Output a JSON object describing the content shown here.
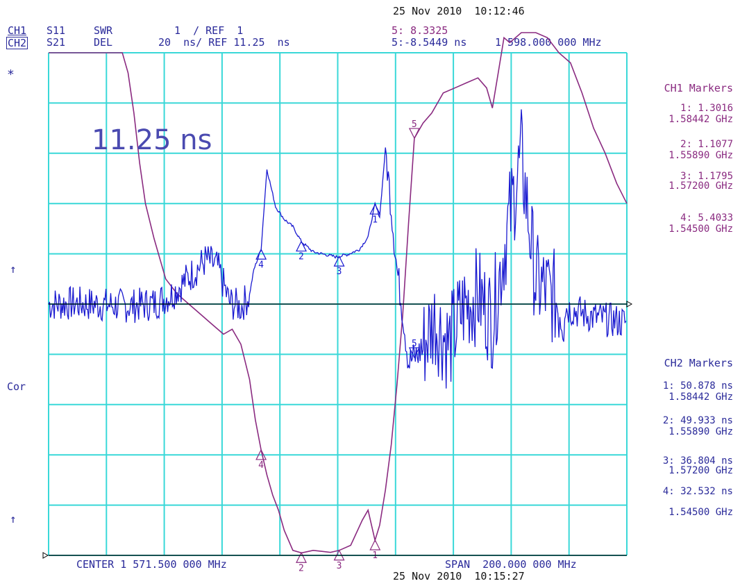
{
  "header": {
    "top_timestamp": "25 Nov 2010  10:12:46",
    "bottom_timestamp": "25 Nov 2010  10:15:27",
    "ch1_label": "CH1",
    "ch2_label": "CH2",
    "ch1_param": "S11",
    "ch2_param": "S21",
    "ch1_format": "SWR",
    "ch2_format": "DEL",
    "ch1_scale": "1  / REF  1",
    "ch2_scale": "20  ns/ REF 11.25  ns",
    "marker5_ch1": "5: 8.3325",
    "marker5_ch2": "5:-8.5449 ns",
    "marker5_freq": "1 598.000 000 MHz"
  },
  "left_annotations": {
    "star": "*",
    "arrow_upper": "↑",
    "cor": "Cor",
    "arrow_lower": "↑"
  },
  "overlay_text": "11.25 ns",
  "footer": {
    "center": "CENTER 1 571.500 000 MHz",
    "span": "SPAN  200.000 000 MHz"
  },
  "ch1_markers": {
    "title": "CH1 Markers",
    "items": [
      {
        "value": "1: 1.3016",
        "freq": "1.58442 GHz"
      },
      {
        "value": "2: 1.1077",
        "freq": "1.55890 GHz"
      },
      {
        "value": "3: 1.1795",
        "freq": "1.57200 GHz"
      },
      {
        "value": "4: 5.4033",
        "freq": "1.54500 GHz"
      }
    ]
  },
  "ch2_markers": {
    "title": "CH2 Markers",
    "items": [
      {
        "value": "1: 50.878 ns",
        "freq": "1.58442 GHz"
      },
      {
        "value": "2: 49.933 ns",
        "freq": "1.55890 GHz"
      },
      {
        "value": "3: 36.804 ns",
        "freq": "1.57200 GHz"
      },
      {
        "value": "4: 32.532 ns",
        "freq": "1.54500 GHz"
      }
    ]
  },
  "chart_data": {
    "type": "line",
    "x_range_mhz": [
      1471.5,
      1671.5
    ],
    "x_divisions": 10,
    "y_divisions": 10,
    "grid": true,
    "colors": {
      "grid": "#39d8d8",
      "ch1": "#8a2a80",
      "ch2": "#1a1ad0",
      "text": "#2a2a9a"
    },
    "series": [
      {
        "name": "CH1 S11 SWR",
        "ref_value": 1,
        "scale_per_div": 1,
        "x_mhz": [
          1471.5,
          1497,
          1499,
          1501,
          1503,
          1505,
          1508,
          1512,
          1516,
          1520,
          1524,
          1528,
          1532,
          1535,
          1538,
          1541,
          1543,
          1545,
          1547,
          1549,
          1551,
          1553,
          1556,
          1559,
          1563,
          1566,
          1569,
          1572,
          1576,
          1580,
          1582,
          1584.4,
          1586,
          1588,
          1590,
          1592,
          1594,
          1596,
          1598,
          1601,
          1604,
          1608,
          1612,
          1616,
          1620,
          1623,
          1625,
          1627,
          1629,
          1631,
          1635,
          1640,
          1644,
          1648,
          1652,
          1656,
          1660,
          1664,
          1668,
          1671.5
        ],
        "y": [
          10,
          10,
          9.6,
          8.8,
          7.8,
          7,
          6.3,
          5.5,
          5.2,
          5.0,
          4.8,
          4.6,
          4.4,
          4.5,
          4.2,
          3.5,
          2.7,
          2.1,
          1.6,
          1.2,
          0.9,
          0.5,
          0.1,
          0.05,
          0.1,
          0.08,
          0.06,
          0.1,
          0.2,
          0.7,
          0.9,
          0.3,
          0.6,
          1.3,
          2.2,
          3.4,
          4.8,
          6.6,
          8.3,
          8.6,
          8.8,
          9.2,
          9.3,
          9.4,
          9.5,
          9.3,
          8.9,
          9.6,
          10.3,
          10.2,
          10.4,
          10.4,
          10.3,
          10,
          9.8,
          9.2,
          8.5,
          8.0,
          7.4,
          7.0
        ]
      },
      {
        "name": "CH2 S21 DEL",
        "ref_value_ns": 11.25,
        "scale_per_div_ns": 20,
        "x_mhz": [
          1471.5,
          1480,
          1490,
          1500,
          1508,
          1514,
          1520,
          1526,
          1530,
          1534,
          1538,
          1541,
          1542.5,
          1545,
          1547,
          1550,
          1553,
          1556,
          1559,
          1563,
          1567,
          1571,
          1575,
          1579,
          1582,
          1584.4,
          1586,
          1588,
          1590,
          1592,
          1594,
          1596,
          1600,
          1605,
          1610,
          1615,
          1620,
          1625,
          1630,
          1635,
          1640,
          1645,
          1650,
          1655,
          1660,
          1665,
          1671.5
        ],
        "y_ns": [
          11.25,
          11.5,
          11.0,
          10.5,
          11.5,
          15.0,
          22.0,
          29.0,
          26.0,
          12.0,
          10.0,
          15.0,
          25.0,
          33.0,
          65.0,
          50.0,
          45.0,
          42.0,
          36.0,
          32.0,
          31.0,
          30.0,
          31.0,
          33.0,
          38.0,
          51.0,
          46.0,
          73.0,
          50.0,
          25.0,
          8.0,
          -12.0,
          -8.0,
          5.0,
          -5.0,
          10.0,
          15.0,
          5.0,
          40.0,
          70.0,
          20.0,
          15.0,
          10.0,
          8.0,
          6.0,
          5.0,
          4.0
        ]
      }
    ],
    "ch1_marker_points": [
      {
        "label": "1",
        "x_mhz": 1584.42
      },
      {
        "label": "2",
        "x_mhz": 1558.9
      },
      {
        "label": "3",
        "x_mhz": 1572.0
      },
      {
        "label": "4",
        "x_mhz": 1545.0
      },
      {
        "label": "5",
        "x_mhz": 1598.0
      }
    ],
    "ch2_marker_points": [
      {
        "label": "1",
        "x_mhz": 1584.42
      },
      {
        "label": "2",
        "x_mhz": 1558.9
      },
      {
        "label": "3",
        "x_mhz": 1572.0
      },
      {
        "label": "4",
        "x_mhz": 1545.0
      },
      {
        "label": "5",
        "x_mhz": 1598.0
      }
    ]
  }
}
